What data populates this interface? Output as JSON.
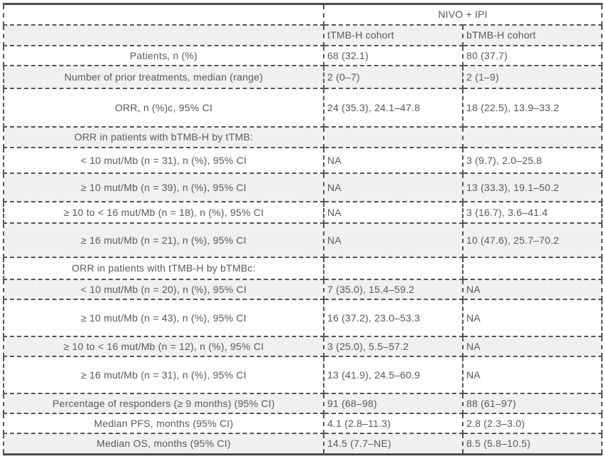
{
  "table": {
    "group_header": "NIVO + IPI",
    "column_headers": [
      "tTMB-H cohort",
      "bTMB-H cohort"
    ],
    "rows": [
      {
        "label": "Patients, n (%)",
        "values": [
          "68 (32.1)",
          "80 (37.7)"
        ]
      },
      {
        "label": "Number of prior treatments, median (range)",
        "values": [
          "2 (0–7)",
          "2 (1–9)"
        ]
      },
      {
        "label": "ORR, n (%)c, 95% CI",
        "values": [
          "24 (35.3), 24.1–47.8",
          "18 (22.5), 13.9–33.2"
        ]
      },
      {
        "label": "ORR in patients with bTMB-H by tTMB:",
        "values": [
          "",
          ""
        ]
      },
      {
        "label": "< 10 mut/Mb (n = 31), n (%), 95% CI",
        "values": [
          "NA",
          "3 (9.7), 2.0–25.8"
        ]
      },
      {
        "label": "≥ 10 mut/Mb (n = 39), n (%), 95% CI",
        "values": [
          "NA",
          "13 (33.3), 19.1–50.2"
        ]
      },
      {
        "label": "≥ 10 to < 16 mut/Mb (n = 18), n (%), 95% CI",
        "values": [
          "NA",
          "3 (16.7), 3.6–41.4"
        ]
      },
      {
        "label": "≥ 16 mut/Mb (n = 21), n (%), 95% CI",
        "values": [
          "NA",
          "10 (47.6), 25.7–70.2"
        ]
      },
      {
        "label": "ORR in patients with tTMB-H by bTMBc:",
        "values": [
          "",
          ""
        ]
      },
      {
        "label": "< 10 mut/Mb (n = 20), n (%), 95% CI",
        "values": [
          "7 (35.0), 15.4–59.2",
          "NA"
        ]
      },
      {
        "label": "≥ 10 mut/Mb (n = 43), n (%), 95% CI",
        "values": [
          "16 (37.2), 23.0–53.3",
          "NA"
        ]
      },
      {
        "label": "≥ 10 to < 16 mut/Mb (n = 12), n (%), 95% CI",
        "values": [
          "3 (25.0), 5.5–57.2",
          "NA"
        ]
      },
      {
        "label": "≥ 16 mut/Mb (n = 31), n (%), 95% CI",
        "values": [
          "13 (41.9), 24.5–60.9",
          "NA"
        ]
      },
      {
        "label": "Percentage of responders (≥ 9 months) (95% CI)",
        "values": [
          "91 (68–98)",
          "88 (61–97)"
        ]
      },
      {
        "label": "Median PFS, months (95% CI)",
        "values": [
          "4.1 (2.8–11.3)",
          "2.8 (2.3–3.0)"
        ]
      },
      {
        "label": "Median OS, months (95% CI)",
        "values": [
          "14.5 (7.7–NE)",
          "8.5 (5.8–10.5)"
        ]
      }
    ],
    "colors": {
      "row_shade": "#f0f0f0",
      "border_dashed": "#555555",
      "border_solid": "#4c4c4c",
      "text": "#595959"
    }
  }
}
